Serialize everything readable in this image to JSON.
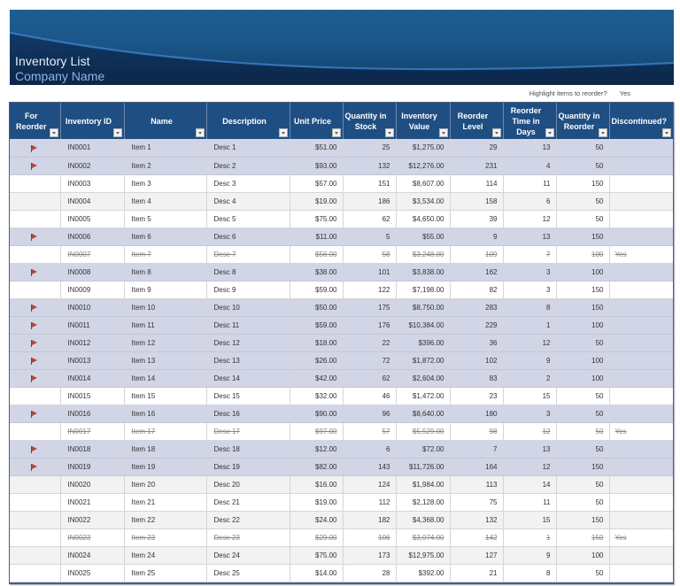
{
  "banner": {
    "title": "Inventory List",
    "subtitle": "Company Name"
  },
  "settings": {
    "highlight_label": "Highlight items to reorder?",
    "highlight_value": "Yes"
  },
  "colors": {
    "header_bg": "#1f4e82",
    "flagged_row_bg": "#d1d5e5",
    "flag_icon": "#b0483e",
    "title_text": "#e9eef5",
    "subtitle_text": "#8fb4e3"
  },
  "table": {
    "columns": [
      {
        "key": "reorder",
        "label": "For Reorder"
      },
      {
        "key": "id",
        "label": "Inventory ID"
      },
      {
        "key": "name",
        "label": "Name"
      },
      {
        "key": "desc",
        "label": "Description"
      },
      {
        "key": "price",
        "label": "Unit Price"
      },
      {
        "key": "qty",
        "label": "Quantity in Stock"
      },
      {
        "key": "value",
        "label": "Inventory Value"
      },
      {
        "key": "level",
        "label": "Reorder Level"
      },
      {
        "key": "days",
        "label": "Reorder Time in Days"
      },
      {
        "key": "reorder_qty",
        "label": "Quantity in Reorder"
      },
      {
        "key": "disc",
        "label": "Discontinued?"
      }
    ],
    "rows": [
      {
        "flag": true,
        "id": "IN0001",
        "name": "Item 1",
        "desc": "Desc 1",
        "price": "$51.00",
        "qty": "25",
        "value": "$1,275.00",
        "level": "29",
        "days": "13",
        "reorder_qty": "50",
        "disc": ""
      },
      {
        "flag": true,
        "id": "IN0002",
        "name": "Item 2",
        "desc": "Desc 2",
        "price": "$93.00",
        "qty": "132",
        "value": "$12,276.00",
        "level": "231",
        "days": "4",
        "reorder_qty": "50",
        "disc": ""
      },
      {
        "flag": false,
        "id": "IN0003",
        "name": "Item 3",
        "desc": "Desc 3",
        "price": "$57.00",
        "qty": "151",
        "value": "$8,607.00",
        "level": "114",
        "days": "11",
        "reorder_qty": "150",
        "disc": ""
      },
      {
        "flag": false,
        "id": "IN0004",
        "name": "Item 4",
        "desc": "Desc 4",
        "price": "$19.00",
        "qty": "186",
        "value": "$3,534.00",
        "level": "158",
        "days": "6",
        "reorder_qty": "50",
        "disc": ""
      },
      {
        "flag": false,
        "id": "IN0005",
        "name": "Item 5",
        "desc": "Desc 5",
        "price": "$75.00",
        "qty": "62",
        "value": "$4,650.00",
        "level": "39",
        "days": "12",
        "reorder_qty": "50",
        "disc": ""
      },
      {
        "flag": true,
        "id": "IN0006",
        "name": "Item 6",
        "desc": "Desc 6",
        "price": "$11.00",
        "qty": "5",
        "value": "$55.00",
        "level": "9",
        "days": "13",
        "reorder_qty": "150",
        "disc": ""
      },
      {
        "flag": false,
        "id": "IN0007",
        "name": "Item 7",
        "desc": "Desc 7",
        "price": "$56.00",
        "qty": "58",
        "value": "$3,248.00",
        "level": "109",
        "days": "7",
        "reorder_qty": "100",
        "disc": "Yes"
      },
      {
        "flag": true,
        "id": "IN0008",
        "name": "Item 8",
        "desc": "Desc 8",
        "price": "$38.00",
        "qty": "101",
        "value": "$3,838.00",
        "level": "162",
        "days": "3",
        "reorder_qty": "100",
        "disc": ""
      },
      {
        "flag": false,
        "id": "IN0009",
        "name": "Item 9",
        "desc": "Desc 9",
        "price": "$59.00",
        "qty": "122",
        "value": "$7,198.00",
        "level": "82",
        "days": "3",
        "reorder_qty": "150",
        "disc": ""
      },
      {
        "flag": true,
        "id": "IN0010",
        "name": "Item 10",
        "desc": "Desc 10",
        "price": "$50.00",
        "qty": "175",
        "value": "$8,750.00",
        "level": "283",
        "days": "8",
        "reorder_qty": "150",
        "disc": ""
      },
      {
        "flag": true,
        "id": "IN0011",
        "name": "Item 11",
        "desc": "Desc 11",
        "price": "$59.00",
        "qty": "176",
        "value": "$10,384.00",
        "level": "229",
        "days": "1",
        "reorder_qty": "100",
        "disc": ""
      },
      {
        "flag": true,
        "id": "IN0012",
        "name": "Item 12",
        "desc": "Desc 12",
        "price": "$18.00",
        "qty": "22",
        "value": "$396.00",
        "level": "36",
        "days": "12",
        "reorder_qty": "50",
        "disc": ""
      },
      {
        "flag": true,
        "id": "IN0013",
        "name": "Item 13",
        "desc": "Desc 13",
        "price": "$26.00",
        "qty": "72",
        "value": "$1,872.00",
        "level": "102",
        "days": "9",
        "reorder_qty": "100",
        "disc": ""
      },
      {
        "flag": true,
        "id": "IN0014",
        "name": "Item 14",
        "desc": "Desc 14",
        "price": "$42.00",
        "qty": "62",
        "value": "$2,604.00",
        "level": "83",
        "days": "2",
        "reorder_qty": "100",
        "disc": ""
      },
      {
        "flag": false,
        "id": "IN0015",
        "name": "Item 15",
        "desc": "Desc 15",
        "price": "$32.00",
        "qty": "46",
        "value": "$1,472.00",
        "level": "23",
        "days": "15",
        "reorder_qty": "50",
        "disc": ""
      },
      {
        "flag": true,
        "id": "IN0016",
        "name": "Item 16",
        "desc": "Desc 16",
        "price": "$90.00",
        "qty": "96",
        "value": "$8,640.00",
        "level": "180",
        "days": "3",
        "reorder_qty": "50",
        "disc": ""
      },
      {
        "flag": false,
        "id": "IN0017",
        "name": "Item 17",
        "desc": "Desc 17",
        "price": "$97.00",
        "qty": "57",
        "value": "$5,529.00",
        "level": "98",
        "days": "12",
        "reorder_qty": "50",
        "disc": "Yes"
      },
      {
        "flag": true,
        "id": "IN0018",
        "name": "Item 18",
        "desc": "Desc 18",
        "price": "$12.00",
        "qty": "6",
        "value": "$72.00",
        "level": "7",
        "days": "13",
        "reorder_qty": "50",
        "disc": ""
      },
      {
        "flag": true,
        "id": "IN0019",
        "name": "Item 19",
        "desc": "Desc 19",
        "price": "$82.00",
        "qty": "143",
        "value": "$11,726.00",
        "level": "164",
        "days": "12",
        "reorder_qty": "150",
        "disc": ""
      },
      {
        "flag": false,
        "id": "IN0020",
        "name": "Item 20",
        "desc": "Desc 20",
        "price": "$16.00",
        "qty": "124",
        "value": "$1,984.00",
        "level": "113",
        "days": "14",
        "reorder_qty": "50",
        "disc": ""
      },
      {
        "flag": false,
        "id": "IN0021",
        "name": "Item 21",
        "desc": "Desc 21",
        "price": "$19.00",
        "qty": "112",
        "value": "$2,128.00",
        "level": "75",
        "days": "11",
        "reorder_qty": "50",
        "disc": ""
      },
      {
        "flag": false,
        "id": "IN0022",
        "name": "Item 22",
        "desc": "Desc 22",
        "price": "$24.00",
        "qty": "182",
        "value": "$4,368.00",
        "level": "132",
        "days": "15",
        "reorder_qty": "150",
        "disc": ""
      },
      {
        "flag": false,
        "id": "IN0023",
        "name": "Item 23",
        "desc": "Desc 23",
        "price": "$29.00",
        "qty": "106",
        "value": "$3,074.00",
        "level": "142",
        "days": "1",
        "reorder_qty": "150",
        "disc": "Yes"
      },
      {
        "flag": false,
        "id": "IN0024",
        "name": "Item 24",
        "desc": "Desc 24",
        "price": "$75.00",
        "qty": "173",
        "value": "$12,975.00",
        "level": "127",
        "days": "9",
        "reorder_qty": "100",
        "disc": ""
      },
      {
        "flag": false,
        "id": "IN0025",
        "name": "Item 25",
        "desc": "Desc 25",
        "price": "$14.00",
        "qty": "28",
        "value": "$392.00",
        "level": "21",
        "days": "8",
        "reorder_qty": "50",
        "disc": ""
      }
    ]
  }
}
